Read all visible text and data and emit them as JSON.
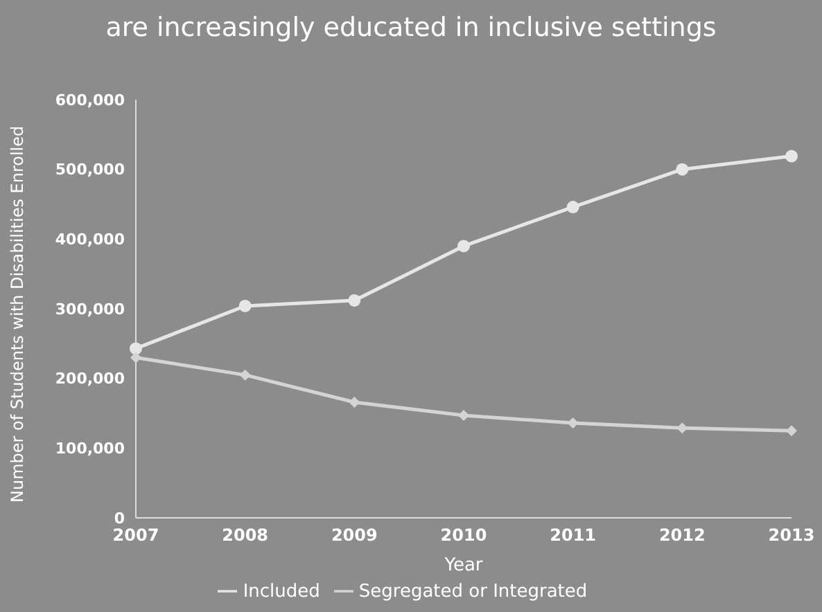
{
  "chart_data": {
    "type": "line",
    "title": "are increasingly educated in inclusive settings",
    "xlabel": "Year",
    "ylabel": "Number of Students with Disabilities Enrolled",
    "categories": [
      "2007",
      "2008",
      "2009",
      "2010",
      "2011",
      "2012",
      "2013"
    ],
    "series": [
      {
        "name": "Included",
        "color": "#e6e6e6",
        "marker": "circle",
        "values": [
          243000,
          304000,
          312000,
          390000,
          446000,
          500000,
          519000
        ]
      },
      {
        "name": "Segregated or Integrated",
        "color": "#d4d4d4",
        "marker": "diamond",
        "values": [
          230000,
          205000,
          166000,
          147000,
          136000,
          129000,
          125000
        ]
      }
    ],
    "ylim": [
      0,
      600000
    ],
    "yticks": [
      0,
      {
        "value": 100000,
        "label": "100,000"
      },
      {
        "value": 200000,
        "label": "200,000"
      },
      {
        "value": 300000,
        "label": "300,000"
      },
      {
        "value": 400000,
        "label": "400,000"
      },
      {
        "value": 500000,
        "label": "500,000"
      },
      {
        "value": 600000,
        "label": "600,000"
      }
    ],
    "legend": "bottom"
  }
}
